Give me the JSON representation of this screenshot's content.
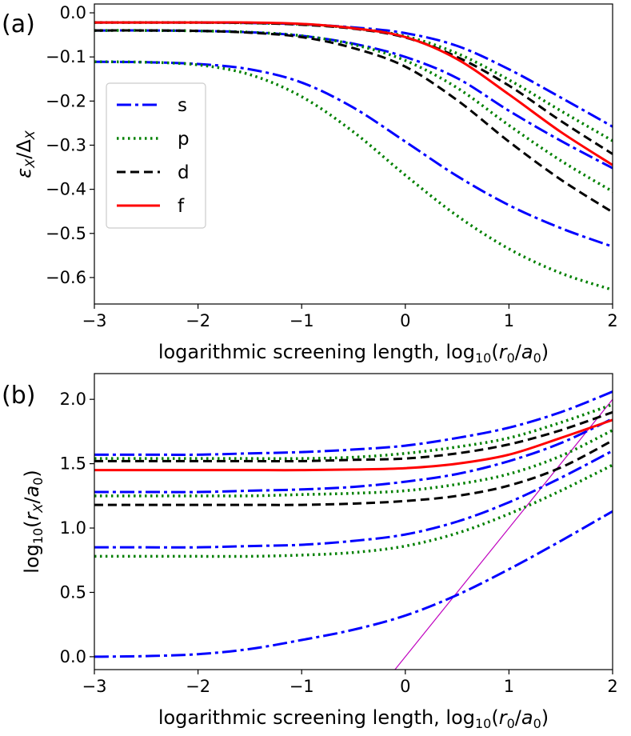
{
  "chart_data": [
    {
      "type": "line",
      "panel_label": "(a)",
      "xlabel": "logarithmic screening length, log10(r0/a0)",
      "ylabel": "εX/ΔX",
      "xlim": [
        -3,
        2
      ],
      "ylim": [
        -0.66,
        0.02
      ],
      "xticks": [
        -3,
        -2,
        -1,
        0,
        1,
        2
      ],
      "xtick_labels": [
        "−3",
        "−2",
        "−1",
        "0",
        "1",
        "2"
      ],
      "yticks": [
        0.0,
        -0.1,
        -0.2,
        -0.3,
        -0.4,
        -0.5,
        -0.6
      ],
      "ytick_labels": [
        "0.0",
        "−0.1",
        "−0.2",
        "−0.3",
        "−0.4",
        "−0.5",
        "−0.6"
      ],
      "legend": {
        "location": "center-left",
        "entries": [
          {
            "label": "s",
            "color": "#0000ff",
            "style": "dashdot"
          },
          {
            "label": "p",
            "color": "#008000",
            "style": "dotted"
          },
          {
            "label": "d",
            "color": "#000000",
            "style": "dashed"
          },
          {
            "label": "f",
            "color": "#ff0000",
            "style": "solid"
          }
        ]
      },
      "x": [
        -3,
        -2.5,
        -2,
        -1.5,
        -1,
        -0.5,
        0,
        0.5,
        1,
        1.5,
        2
      ],
      "series": [
        {
          "name": "s1",
          "family": "s",
          "values": [
            -0.111,
            -0.112,
            -0.116,
            -0.128,
            -0.158,
            -0.215,
            -0.292,
            -0.37,
            -0.436,
            -0.488,
            -0.53
          ]
        },
        {
          "name": "p1",
          "family": "p",
          "values": [
            -0.111,
            -0.112,
            -0.118,
            -0.14,
            -0.19,
            -0.27,
            -0.368,
            -0.46,
            -0.535,
            -0.59,
            -0.628
          ]
        },
        {
          "name": "s2",
          "family": "s",
          "values": [
            -0.04,
            -0.04,
            -0.041,
            -0.044,
            -0.052,
            -0.07,
            -0.1,
            -0.148,
            -0.222,
            -0.29,
            -0.352
          ]
        },
        {
          "name": "p2",
          "family": "p",
          "values": [
            -0.04,
            -0.04,
            -0.041,
            -0.044,
            -0.052,
            -0.072,
            -0.108,
            -0.17,
            -0.255,
            -0.335,
            -0.405
          ]
        },
        {
          "name": "d1",
          "family": "d",
          "values": [
            -0.04,
            -0.04,
            -0.041,
            -0.045,
            -0.055,
            -0.08,
            -0.122,
            -0.198,
            -0.292,
            -0.378,
            -0.452
          ]
        },
        {
          "name": "s3",
          "family": "s",
          "values": [
            -0.022,
            -0.022,
            -0.022,
            -0.023,
            -0.026,
            -0.033,
            -0.046,
            -0.075,
            -0.128,
            -0.192,
            -0.258
          ]
        },
        {
          "name": "p3",
          "family": "p",
          "values": [
            -0.022,
            -0.022,
            -0.022,
            -0.023,
            -0.026,
            -0.035,
            -0.053,
            -0.092,
            -0.152,
            -0.222,
            -0.29
          ]
        },
        {
          "name": "d2",
          "family": "d",
          "values": [
            -0.022,
            -0.022,
            -0.022,
            -0.023,
            -0.027,
            -0.036,
            -0.056,
            -0.1,
            -0.165,
            -0.245,
            -0.32
          ]
        },
        {
          "name": "f1",
          "family": "f",
          "values": [
            -0.022,
            -0.022,
            -0.022,
            -0.022,
            -0.025,
            -0.035,
            -0.055,
            -0.105,
            -0.185,
            -0.27,
            -0.345
          ]
        }
      ]
    },
    {
      "type": "line",
      "panel_label": "(b)",
      "xlabel": "logarithmic screening length, log10(r0/a0)",
      "ylabel": "log10(rX/a0)",
      "xlim": [
        -3,
        2
      ],
      "ylim": [
        -0.1,
        2.2
      ],
      "xticks": [
        -3,
        -2,
        -1,
        0,
        1,
        2
      ],
      "xtick_labels": [
        "−3",
        "−2",
        "−1",
        "0",
        "1",
        "2"
      ],
      "yticks": [
        0.0,
        0.5,
        1.0,
        1.5,
        2.0
      ],
      "ytick_labels": [
        "0.0",
        "0.5",
        "1.0",
        "1.5",
        "2.0"
      ],
      "x": [
        -3,
        -2.5,
        -2,
        -1.5,
        -1,
        -0.5,
        0,
        0.5,
        1,
        1.5,
        2
      ],
      "series": [
        {
          "name": "s1",
          "family": "s",
          "values": [
            0.0,
            0.005,
            0.02,
            0.06,
            0.13,
            0.21,
            0.32,
            0.48,
            0.68,
            0.9,
            1.13
          ]
        },
        {
          "name": "p1",
          "family": "p",
          "values": [
            0.78,
            0.78,
            0.78,
            0.78,
            0.79,
            0.81,
            0.86,
            0.96,
            1.11,
            1.29,
            1.49
          ]
        },
        {
          "name": "s2",
          "family": "s",
          "values": [
            0.85,
            0.85,
            0.85,
            0.86,
            0.87,
            0.9,
            0.95,
            1.05,
            1.2,
            1.39,
            1.6
          ]
        },
        {
          "name": "d1",
          "family": "d",
          "values": [
            1.18,
            1.18,
            1.18,
            1.18,
            1.18,
            1.19,
            1.21,
            1.25,
            1.33,
            1.47,
            1.68
          ]
        },
        {
          "name": "p2",
          "family": "p",
          "values": [
            1.25,
            1.25,
            1.25,
            1.25,
            1.26,
            1.27,
            1.29,
            1.34,
            1.42,
            1.56,
            1.76
          ]
        },
        {
          "name": "s3",
          "family": "s",
          "values": [
            1.28,
            1.28,
            1.28,
            1.29,
            1.3,
            1.32,
            1.36,
            1.42,
            1.52,
            1.66,
            1.85
          ]
        },
        {
          "name": "f1",
          "family": "f",
          "values": [
            1.45,
            1.45,
            1.45,
            1.45,
            1.45,
            1.455,
            1.465,
            1.5,
            1.57,
            1.7,
            1.84
          ]
        },
        {
          "name": "d2",
          "family": "d",
          "values": [
            1.52,
            1.52,
            1.52,
            1.52,
            1.52,
            1.53,
            1.54,
            1.58,
            1.65,
            1.76,
            1.9
          ]
        },
        {
          "name": "p3",
          "family": "p",
          "values": [
            1.54,
            1.54,
            1.54,
            1.54,
            1.54,
            1.55,
            1.58,
            1.63,
            1.7,
            1.82,
            1.96
          ]
        },
        {
          "name": "s4",
          "family": "s",
          "values": [
            1.57,
            1.57,
            1.57,
            1.58,
            1.59,
            1.61,
            1.64,
            1.7,
            1.78,
            1.9,
            2.06
          ]
        }
      ],
      "reference_line": {
        "name": "r_X = r_0",
        "color": "#bf00bf",
        "x": [
          -0.1,
          2.0
        ],
        "y": [
          -0.1,
          2.0
        ]
      }
    }
  ],
  "styles": {
    "s": {
      "color": "#0000ff",
      "dash": "18,5,4,5"
    },
    "p": {
      "color": "#008000",
      "dash": "2.5,4.5"
    },
    "d": {
      "color": "#000000",
      "dash": "11,6"
    },
    "f": {
      "color": "#ff0000",
      "dash": ""
    }
  }
}
